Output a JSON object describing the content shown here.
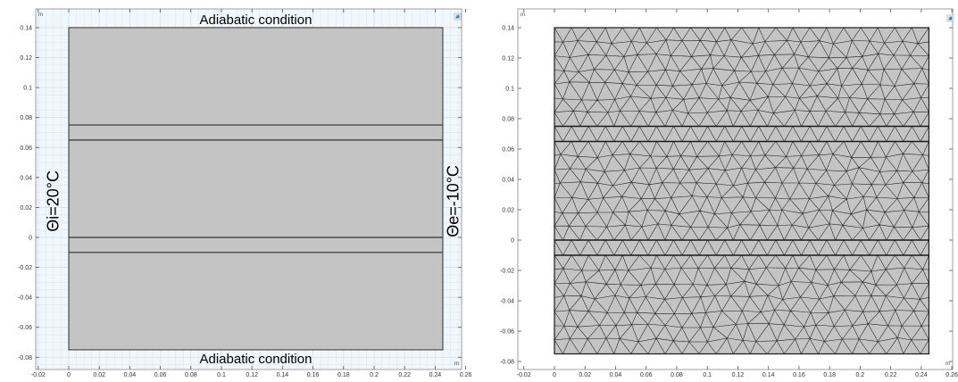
{
  "left_view": {
    "unit_y": "m",
    "unit_x": "m",
    "top_label": "Adiabatic condition",
    "bottom_label": "Adiabatic condition",
    "left_label": "Θi=20°C",
    "right_label": "Θe=-10°C"
  },
  "right_view": {
    "unit_y": "m",
    "unit_x": "m"
  },
  "axes": {
    "x_ticks": [
      "-0.02",
      "0",
      "0.02",
      "0.04",
      "0.06",
      "0.08",
      "0.1",
      "0.12",
      "0.14",
      "0.16",
      "0.18",
      "0.2",
      "0.22",
      "0.24",
      "0.26"
    ],
    "y_ticks": [
      "0.14",
      "0.12",
      "0.1",
      "0.08",
      "0.06",
      "0.04",
      "0.02",
      "0",
      "-0.02",
      "-0.04",
      "-0.06",
      "-0.08"
    ]
  },
  "geometry": {
    "domain_x": [
      0,
      0.245
    ],
    "domain_y": [
      -0.075,
      0.14
    ],
    "layer_boundaries_y": [
      0.075,
      0.065,
      0.0,
      -0.01
    ]
  },
  "colors": {
    "domain_fill": "#c4c4c4",
    "grid_line": "#d5e4f2",
    "plot_bg_left": "#f2f7fc",
    "plot_bg_right": "#ffffff",
    "outline": "#4a4a4a",
    "mesh_edge": "#1a1a1a",
    "icon_blue": "#2a7fd4"
  }
}
